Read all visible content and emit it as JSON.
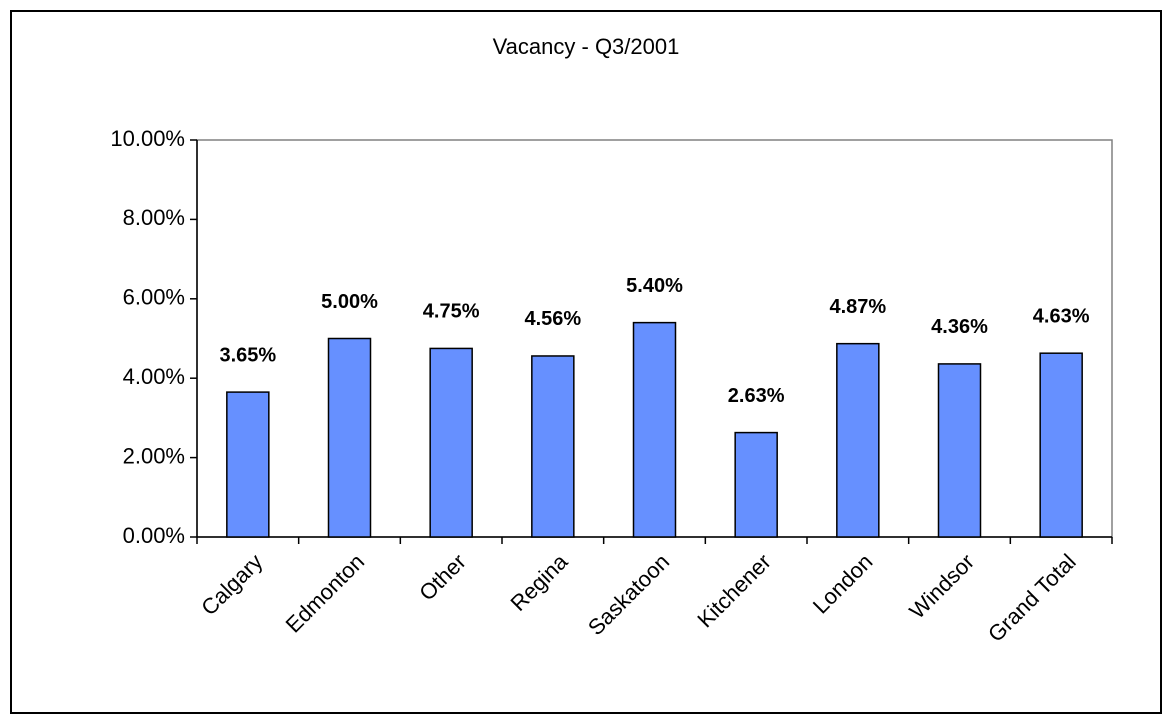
{
  "chart_data": {
    "type": "bar",
    "title": "Vacancy - Q3/2001",
    "categories": [
      "Calgary",
      "Edmonton",
      "Other",
      "Regina",
      "Saskatoon",
      "Kitchener",
      "London",
      "Windsor",
      "Grand Total"
    ],
    "values": [
      3.65,
      5.0,
      4.75,
      4.56,
      5.4,
      2.63,
      4.87,
      4.36,
      4.63
    ],
    "value_labels": [
      "3.65%",
      "5.00%",
      "4.75%",
      "4.56%",
      "5.40%",
      "2.63%",
      "4.87%",
      "4.36%",
      "4.63%"
    ],
    "color": "#6690ff",
    "ylim": [
      0,
      10
    ],
    "yticks": [
      {
        "value": 0,
        "label": "0.00%"
      },
      {
        "value": 2,
        "label": "2.00%"
      },
      {
        "value": 4,
        "label": "4.00%"
      },
      {
        "value": 6,
        "label": "6.00%"
      },
      {
        "value": 8,
        "label": "8.00%"
      },
      {
        "value": 10,
        "label": "10.00%"
      }
    ],
    "grid": false
  }
}
